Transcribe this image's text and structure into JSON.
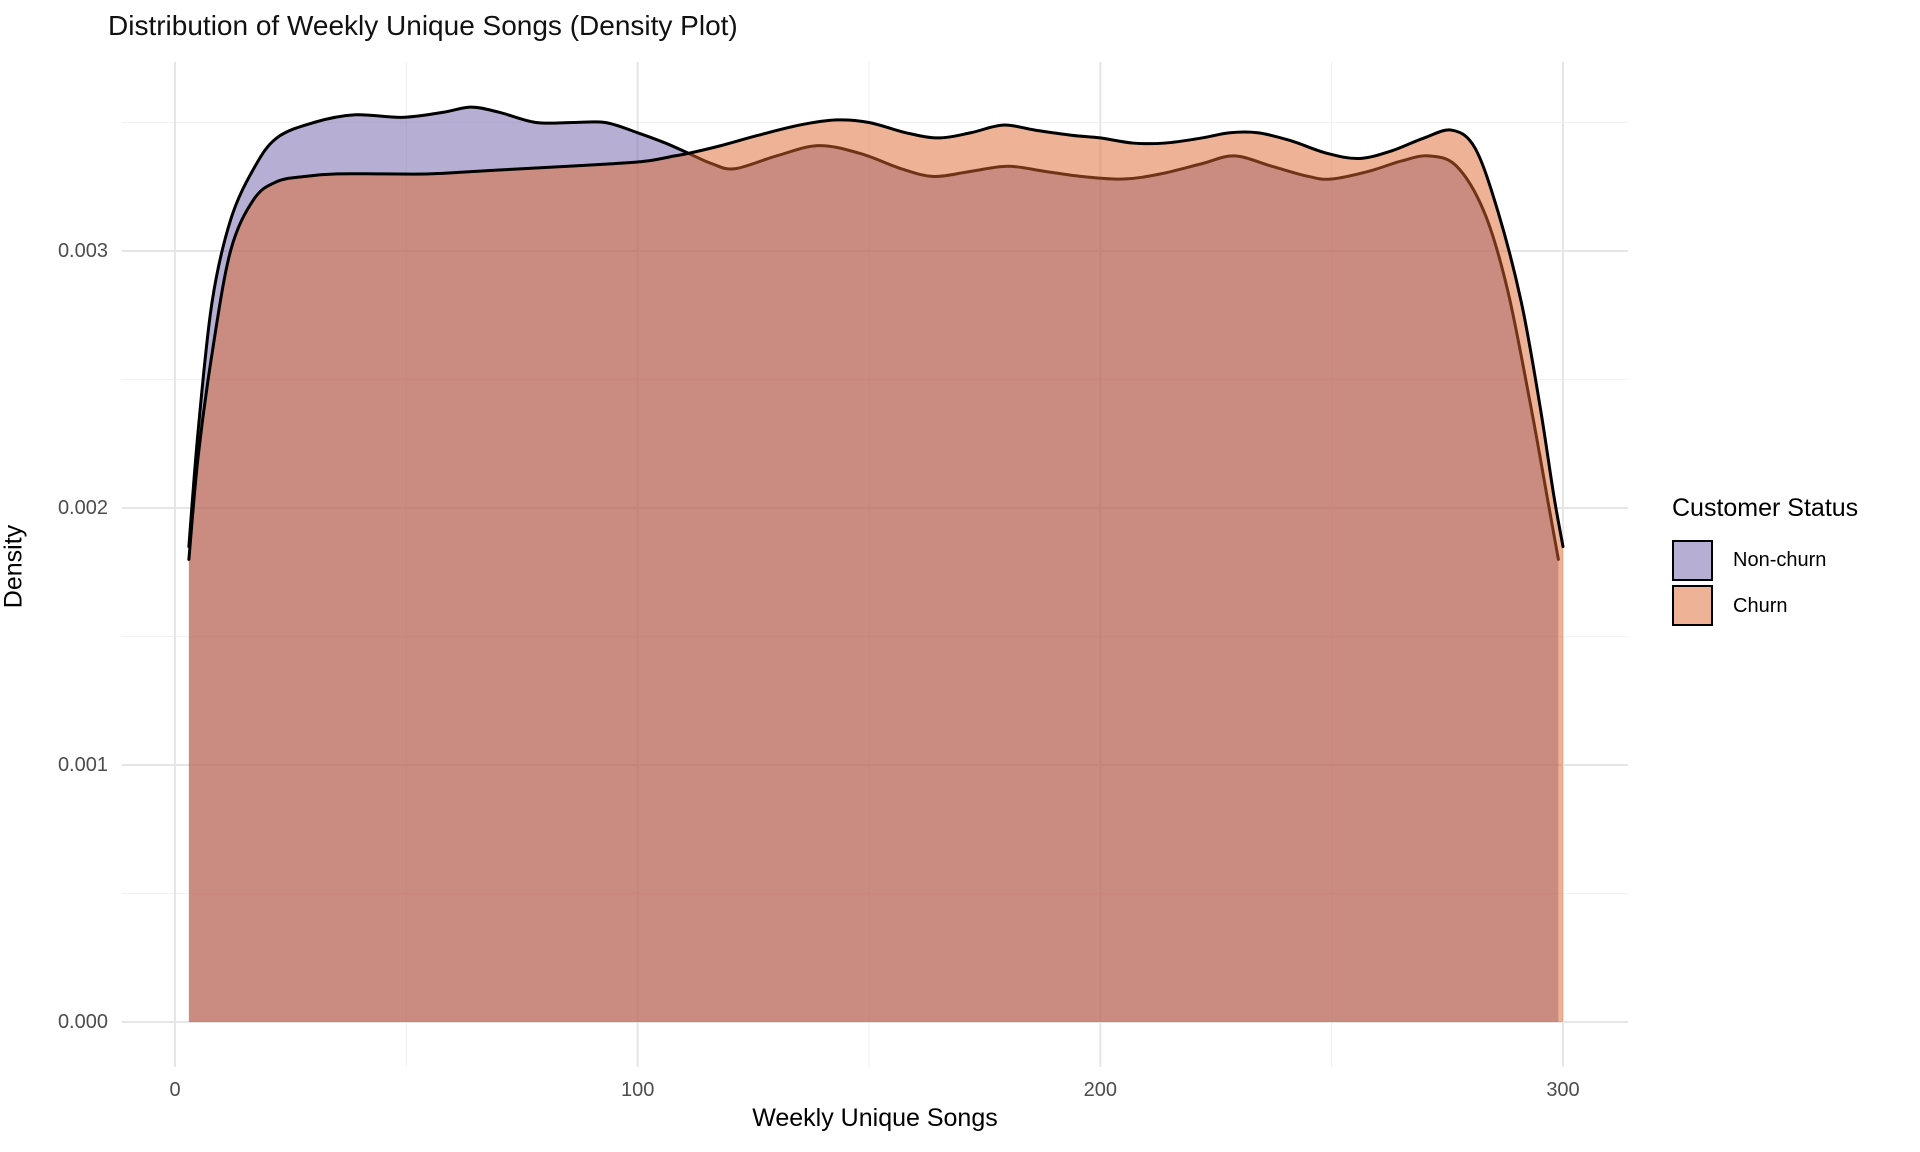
{
  "title": "Distribution of Weekly Unique Songs (Density Plot)",
  "axes": {
    "x_label": "Weekly Unique Songs",
    "y_label": "Density",
    "x_ticks": [
      "0",
      "100",
      "200",
      "300"
    ],
    "y_ticks": [
      "0.000",
      "0.001",
      "0.002",
      "0.003"
    ]
  },
  "legend": {
    "title": "Customer Status",
    "items": [
      {
        "label": "Non-churn",
        "color": "#6F5DA9"
      },
      {
        "label": "Churn",
        "color": "#DD672D"
      }
    ]
  },
  "colors": {
    "stroke": "#000000",
    "fill_alpha": 0.5,
    "gridline_major": "#e6e6e6",
    "gridline_minor": "#f2f2f2",
    "tick_label": "#4d4d4d"
  },
  "chart_data": {
    "type": "area",
    "subtype": "kernel-density",
    "title": "Distribution of Weekly Unique Songs (Density Plot)",
    "xlabel": "Weekly Unique Songs",
    "ylabel": "Density",
    "xlim": [
      -15,
      315
    ],
    "ylim": [
      -0.00018,
      0.00373
    ],
    "x_major_ticks": [
      0,
      100,
      200,
      300
    ],
    "x_minor_ticks": [
      50,
      150,
      250
    ],
    "y_major_ticks": [
      0,
      0.001,
      0.002,
      0.003
    ],
    "y_minor_ticks": [
      0.0005,
      0.0015,
      0.0025,
      0.0035
    ],
    "grid": "on",
    "legend_position": "right",
    "fill_alpha": 0.5,
    "series": [
      {
        "name": "Non-churn",
        "color": "#6F5DA9",
        "points": [
          [
            3,
            0.00185
          ],
          [
            5,
            0.0023
          ],
          [
            8,
            0.0028
          ],
          [
            12,
            0.00312
          ],
          [
            17,
            0.00332
          ],
          [
            22,
            0.00344
          ],
          [
            30,
            0.0035
          ],
          [
            39,
            0.00353
          ],
          [
            49,
            0.00352
          ],
          [
            58,
            0.00354
          ],
          [
            64,
            0.00356
          ],
          [
            70,
            0.00354
          ],
          [
            78,
            0.0035
          ],
          [
            86,
            0.0035
          ],
          [
            93,
            0.0035
          ],
          [
            100,
            0.00346
          ],
          [
            106,
            0.00342
          ],
          [
            111,
            0.00338
          ],
          [
            116,
            0.00334
          ],
          [
            121,
            0.00332
          ],
          [
            130,
            0.00337
          ],
          [
            139,
            0.00341
          ],
          [
            148,
            0.00338
          ],
          [
            157,
            0.00332
          ],
          [
            164,
            0.00329
          ],
          [
            172,
            0.00331
          ],
          [
            180,
            0.00333
          ],
          [
            188,
            0.00331
          ],
          [
            196,
            0.00329
          ],
          [
            205,
            0.00328
          ],
          [
            213,
            0.0033
          ],
          [
            222,
            0.00334
          ],
          [
            229,
            0.00337
          ],
          [
            237,
            0.00333
          ],
          [
            245,
            0.00329
          ],
          [
            250,
            0.00328
          ],
          [
            258,
            0.00331
          ],
          [
            265,
            0.00335
          ],
          [
            271,
            0.00337
          ],
          [
            277,
            0.00333
          ],
          [
            283,
            0.00315
          ],
          [
            288,
            0.00285
          ],
          [
            293,
            0.0024
          ],
          [
            297,
            0.002
          ],
          [
            299,
            0.0018
          ]
        ]
      },
      {
        "name": "Churn",
        "color": "#DD672D",
        "points": [
          [
            3,
            0.0018
          ],
          [
            5,
            0.0022
          ],
          [
            8,
            0.0026
          ],
          [
            12,
            0.003
          ],
          [
            17,
            0.0032
          ],
          [
            22,
            0.00327
          ],
          [
            28,
            0.00329
          ],
          [
            35,
            0.0033
          ],
          [
            45,
            0.0033
          ],
          [
            55,
            0.0033
          ],
          [
            65,
            0.00331
          ],
          [
            75,
            0.00332
          ],
          [
            85,
            0.00333
          ],
          [
            95,
            0.00334
          ],
          [
            102,
            0.00335
          ],
          [
            108,
            0.00337
          ],
          [
            111,
            0.00338
          ],
          [
            118,
            0.00341
          ],
          [
            126,
            0.00345
          ],
          [
            135,
            0.00349
          ],
          [
            143,
            0.00351
          ],
          [
            150,
            0.0035
          ],
          [
            158,
            0.00346
          ],
          [
            165,
            0.00344
          ],
          [
            172,
            0.00346
          ],
          [
            179,
            0.00349
          ],
          [
            186,
            0.00347
          ],
          [
            194,
            0.00345
          ],
          [
            200,
            0.00344
          ],
          [
            207,
            0.00342
          ],
          [
            214,
            0.00342
          ],
          [
            222,
            0.00344
          ],
          [
            228,
            0.00346
          ],
          [
            234,
            0.00346
          ],
          [
            241,
            0.00343
          ],
          [
            249,
            0.00338
          ],
          [
            256,
            0.00336
          ],
          [
            263,
            0.00339
          ],
          [
            270,
            0.00344
          ],
          [
            276,
            0.00347
          ],
          [
            281,
            0.0034
          ],
          [
            286,
            0.00315
          ],
          [
            291,
            0.0028
          ],
          [
            295,
            0.0024
          ],
          [
            298,
            0.00205
          ],
          [
            300,
            0.00185
          ]
        ]
      }
    ]
  }
}
